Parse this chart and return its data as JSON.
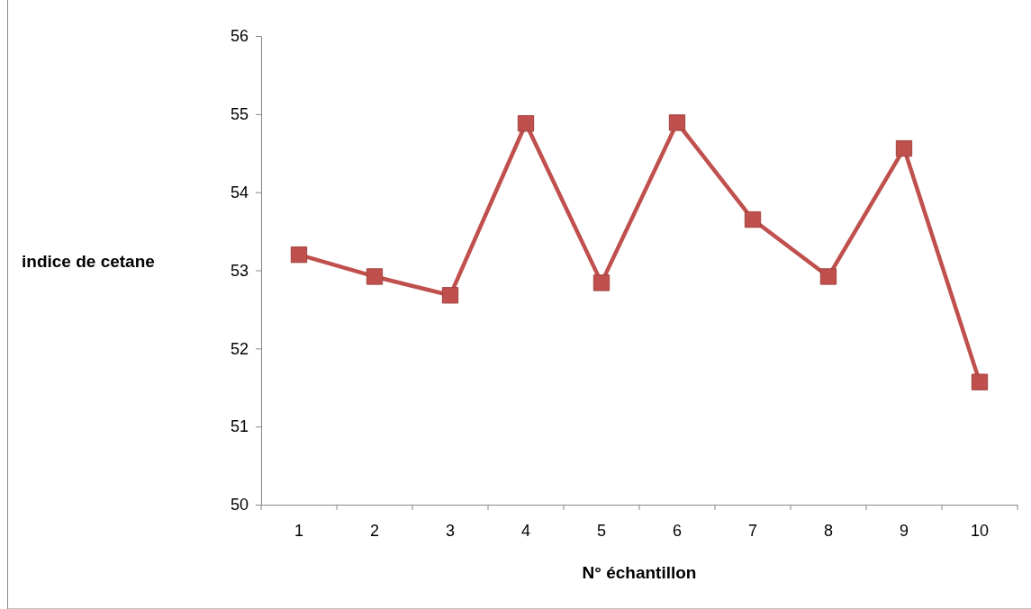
{
  "chart_data": {
    "type": "line",
    "xlabel": "N° échantillon",
    "ylabel": "indice de cetane",
    "categories": [
      "1",
      "2",
      "3",
      "4",
      "5",
      "6",
      "7",
      "8",
      "9",
      "10"
    ],
    "series": [
      {
        "color": "#c0504d",
        "values": [
          53.2,
          52.92,
          52.68,
          54.88,
          52.84,
          54.89,
          53.65,
          52.92,
          54.56,
          51.57
        ]
      }
    ],
    "ylim": [
      50,
      56
    ],
    "yticks": [
      50,
      51,
      52,
      53,
      54,
      55,
      56
    ],
    "grid": false,
    "marker": "square",
    "line_style": "solid"
  }
}
